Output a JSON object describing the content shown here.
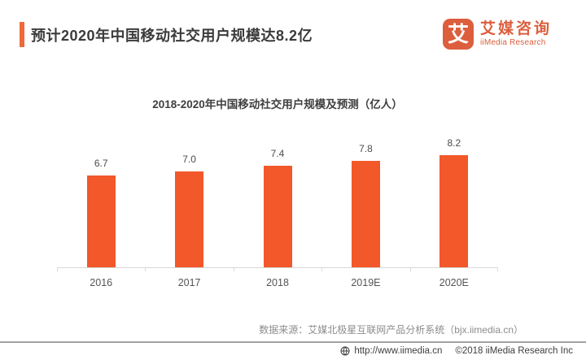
{
  "header": {
    "title": "预计2020年中国移动社交用户规模达8.2亿"
  },
  "logo": {
    "mark": "艾",
    "name_cn": "艾媒咨询",
    "name_en": "iiMedia Research"
  },
  "chart_data": {
    "type": "bar",
    "title": "2018-2020年中国移动社交用户规模及预测（亿人）",
    "categories": [
      "2016",
      "2017",
      "2018",
      "2019E",
      "2020E"
    ],
    "values": [
      6.7,
      7.0,
      7.4,
      7.8,
      8.2
    ],
    "value_labels": [
      "6.7",
      "7.0",
      "7.4",
      "7.8",
      "8.2"
    ],
    "xlabel": "",
    "ylabel": "",
    "ylim": [
      0,
      8.2
    ],
    "grid": false,
    "legend": "none",
    "bar_color": "#F25829"
  },
  "source_note": "数据来源：艾媒北极星互联网产品分析系统（bjx.iimedia.cn）",
  "footer": {
    "url": "http://www.iimedia.cn",
    "copyright": "©2018  iiMedia Research Inc"
  },
  "colors": {
    "accent": "#EE6A3B",
    "bar": "#F25829",
    "logo": "#DC5E3D"
  }
}
